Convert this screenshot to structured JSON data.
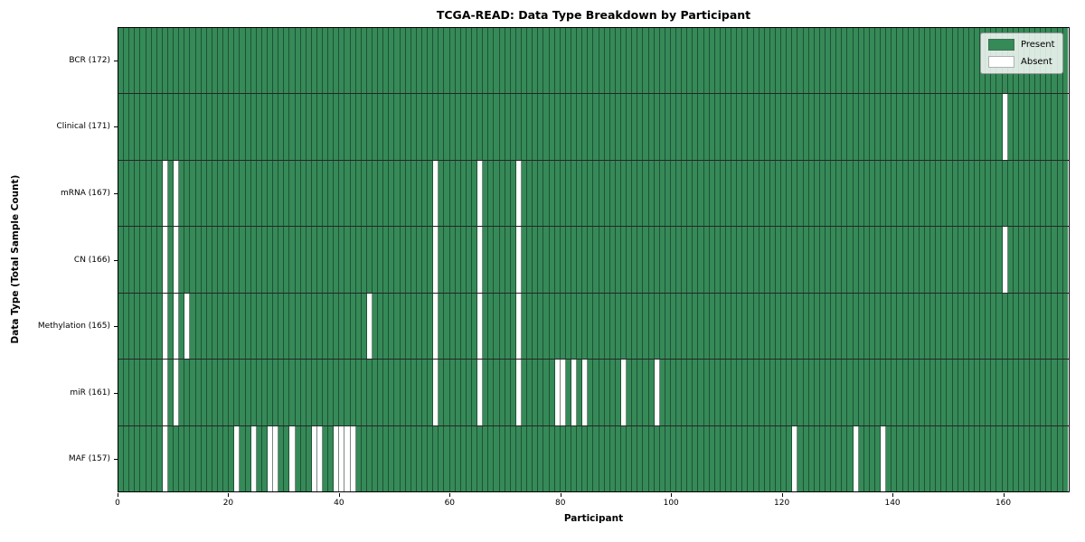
{
  "title": "TCGA-READ: Data Type Breakdown by Participant",
  "axes": {
    "x_label": "Participant",
    "y_label": "Data Type (Total Sample Count)",
    "x_ticks": [
      0,
      20,
      40,
      60,
      80,
      100,
      120,
      140,
      160
    ],
    "x_max": 172
  },
  "legend": {
    "present_label": "Present",
    "absent_label": "Absent"
  },
  "colors": {
    "present": "#358a58",
    "absent": "#ffffff"
  },
  "chart_data": {
    "type": "heatmap",
    "title": "TCGA-READ: Data Type Breakdown by Participant",
    "xlabel": "Participant",
    "ylabel": "Data Type (Total Sample Count)",
    "x_range": [
      0,
      172
    ],
    "n_participants": 172,
    "legend_position": "upper right",
    "cell_values": "present=1 (green), absent=0 (white)",
    "rows": [
      {
        "label": "BCR (172)",
        "total": 172,
        "absent_participants": []
      },
      {
        "label": "Clinical (171)",
        "total": 171,
        "absent_participants": [
          160
        ]
      },
      {
        "label": "mRNA (167)",
        "total": 167,
        "absent_participants": [
          8,
          10,
          57,
          65,
          72
        ]
      },
      {
        "label": "CN (166)",
        "total": 166,
        "absent_participants": [
          8,
          10,
          57,
          65,
          72,
          160
        ]
      },
      {
        "label": "Methylation (165)",
        "total": 165,
        "absent_participants": [
          8,
          10,
          12,
          45,
          57,
          65,
          72
        ]
      },
      {
        "label": "miR (161)",
        "total": 161,
        "absent_participants": [
          8,
          10,
          57,
          65,
          72,
          79,
          80,
          82,
          84,
          91,
          97
        ]
      },
      {
        "label": "MAF (157)",
        "total": 157,
        "absent_participants": [
          8,
          21,
          24,
          27,
          28,
          31,
          35,
          36,
          39,
          40,
          41,
          42,
          122,
          133,
          138
        ]
      }
    ]
  }
}
